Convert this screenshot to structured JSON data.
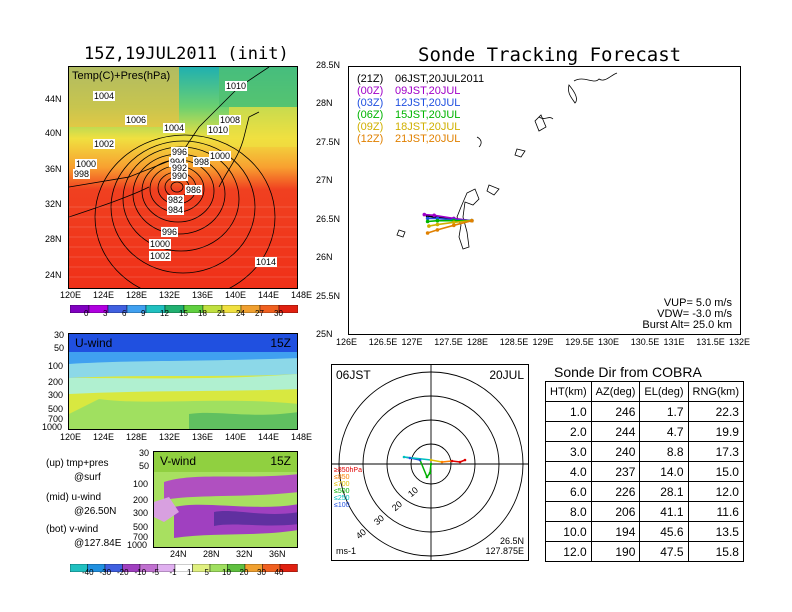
{
  "left": {
    "title": "15Z,19JUL2011 (init)",
    "map_label": "Temp(C)+Pres(hPa)",
    "lat_ticks": [
      "44N",
      "40N",
      "36N",
      "32N",
      "28N",
      "24N"
    ],
    "lon_ticks": [
      "120E",
      "124E",
      "128E",
      "132E",
      "136E",
      "140E",
      "144E",
      "148E"
    ],
    "pressure_labels": [
      "1004",
      "1006",
      "1004",
      "1010",
      "1008",
      "1002",
      "1010",
      "1000",
      "998",
      "996",
      "994",
      "992",
      "990",
      "1000",
      "998",
      "986",
      "984",
      "982",
      "996",
      "1000",
      "1002",
      "1014"
    ],
    "temp_colorbar": [
      "0",
      "3",
      "6",
      "9",
      "12",
      "15",
      "18",
      "21",
      "24",
      "27",
      "30"
    ],
    "u_wind": {
      "label": "U-wind",
      "time": "15Z",
      "levels": [
        "30",
        "50",
        "100",
        "200",
        "300",
        "500",
        "700",
        "1000"
      ],
      "lon_ticks": [
        "120E",
        "124E",
        "128E",
        "132E",
        "136E",
        "140E",
        "144E",
        "148E"
      ]
    },
    "v_wind": {
      "label": "V-wind",
      "time": "15Z",
      "levels": [
        "30",
        "50",
        "100",
        "200",
        "300",
        "500",
        "700",
        "1000"
      ],
      "lat_ticks": [
        "24N",
        "28N",
        "32N",
        "36N"
      ]
    },
    "notes": [
      "(up) tmp+pres",
      "@surf",
      "(mid) u-wind",
      "@26.50N",
      "(bot) v-wind",
      "@127.84E"
    ],
    "wind_colorbar": [
      "-40",
      "-30",
      "-20",
      "-10",
      "-5",
      "-1",
      "1",
      "5",
      "10",
      "20",
      "30",
      "40"
    ]
  },
  "track": {
    "title": "Sonde Tracking Forecast",
    "lat_ticks": [
      "28.5N",
      "28N",
      "27.5N",
      "27N",
      "26.5N",
      "26N",
      "25.5N",
      "25N"
    ],
    "lon_ticks": [
      "126E",
      "126.5E",
      "127E",
      "127.5E",
      "128E",
      "128.5E",
      "129E",
      "129.5E",
      "130E",
      "130.5E",
      "131E",
      "131.5E",
      "132E"
    ],
    "legend": [
      {
        "code": "(21Z)",
        "time": "06JST,20JUL2011",
        "color": "#000000"
      },
      {
        "code": "(00Z)",
        "time": "09JST,20JUL",
        "color": "#a000c8"
      },
      {
        "code": "(03Z)",
        "time": "12JST,20JUL",
        "color": "#2050e0"
      },
      {
        "code": "(06Z)",
        "time": "15JST,20JUL",
        "color": "#00b400"
      },
      {
        "code": "(09Z)",
        "time": "18JST,20JUL",
        "color": "#d0b000"
      },
      {
        "code": "(12Z)",
        "time": "21JST,20JUL",
        "color": "#e08000"
      }
    ],
    "params": [
      "VUP=  5.0 m/s",
      "VDW= -3.0 m/s",
      "Burst Alt= 25.0 km"
    ]
  },
  "polar": {
    "time": "06JST",
    "date": "20JUL",
    "ring_labels": [
      "10",
      "20",
      "30",
      "40"
    ],
    "levels": [
      {
        "label": "≥850hPa",
        "color": "#e00000"
      },
      {
        "label": "≤850",
        "color": "#ff8000"
      },
      {
        "label": "≤700",
        "color": "#e0c000"
      },
      {
        "label": "≤500",
        "color": "#00b000"
      },
      {
        "label": "≤250",
        "color": "#00c0c0"
      },
      {
        "label": "≤100",
        "color": "#2050e0"
      }
    ],
    "unit": "ms-1",
    "loc_lat": "26.5N",
    "loc_lon": "127.875E"
  },
  "table": {
    "title": "Sonde Dir from COBRA",
    "headers": [
      "HT(km)",
      "AZ(deg)",
      "EL(deg)",
      "RNG(km)"
    ],
    "rows": [
      [
        "1.0",
        "246",
        "1.7",
        "22.3"
      ],
      [
        "2.0",
        "244",
        "4.7",
        "19.9"
      ],
      [
        "3.0",
        "240",
        "8.8",
        "17.3"
      ],
      [
        "4.0",
        "237",
        "14.0",
        "15.0"
      ],
      [
        "6.0",
        "226",
        "28.1",
        "12.0"
      ],
      [
        "8.0",
        "206",
        "41.1",
        "11.6"
      ],
      [
        "10.0",
        "194",
        "45.6",
        "13.5"
      ],
      [
        "12.0",
        "190",
        "47.5",
        "15.8"
      ]
    ]
  },
  "chart_data": [
    {
      "type": "table",
      "title": "Sonde Dir from COBRA",
      "columns": [
        "HT(km)",
        "AZ(deg)",
        "EL(deg)",
        "RNG(km)"
      ],
      "rows": [
        [
          1.0,
          246,
          1.7,
          22.3
        ],
        [
          2.0,
          244,
          4.7,
          19.9
        ],
        [
          3.0,
          240,
          8.8,
          17.3
        ],
        [
          4.0,
          237,
          14.0,
          15.0
        ],
        [
          6.0,
          226,
          28.1,
          12.0
        ],
        [
          8.0,
          206,
          41.1,
          11.6
        ],
        [
          10.0,
          194,
          45.6,
          13.5
        ],
        [
          12.0,
          190,
          47.5,
          15.8
        ]
      ]
    },
    {
      "type": "line",
      "title": "Sonde Tracking Forecast",
      "xlim": [
        126,
        132
      ],
      "ylim": [
        25,
        28.5
      ],
      "series": [
        {
          "name": "(21Z) 06JST,20JUL2011",
          "color": "#000000",
          "x": [
            127.875,
            127.6,
            127.3,
            127.2
          ],
          "y": [
            26.5,
            26.52,
            26.55,
            26.56
          ]
        },
        {
          "name": "(00Z) 09JST,20JUL",
          "color": "#a000c8",
          "x": [
            127.875,
            127.6,
            127.3,
            127.15
          ],
          "y": [
            26.5,
            26.53,
            26.57,
            26.58
          ]
        },
        {
          "name": "(03Z) 12JST,20JUL",
          "color": "#2050e0",
          "x": [
            127.875,
            127.6,
            127.35,
            127.2
          ],
          "y": [
            26.5,
            26.51,
            26.53,
            26.53
          ]
        },
        {
          "name": "(06Z) 15JST,20JUL",
          "color": "#00b400",
          "x": [
            127.875,
            127.6,
            127.35,
            127.2
          ],
          "y": [
            26.5,
            26.5,
            26.5,
            26.49
          ]
        },
        {
          "name": "(09Z) 18JST,20JUL",
          "color": "#d0b000",
          "x": [
            127.875,
            127.6,
            127.35,
            127.22
          ],
          "y": [
            26.5,
            26.48,
            26.45,
            26.43
          ]
        },
        {
          "name": "(12Z) 21JST,20JUL",
          "color": "#e08000",
          "x": [
            127.875,
            127.6,
            127.35,
            127.2
          ],
          "y": [
            26.5,
            26.44,
            26.38,
            26.34
          ]
        }
      ]
    }
  ]
}
